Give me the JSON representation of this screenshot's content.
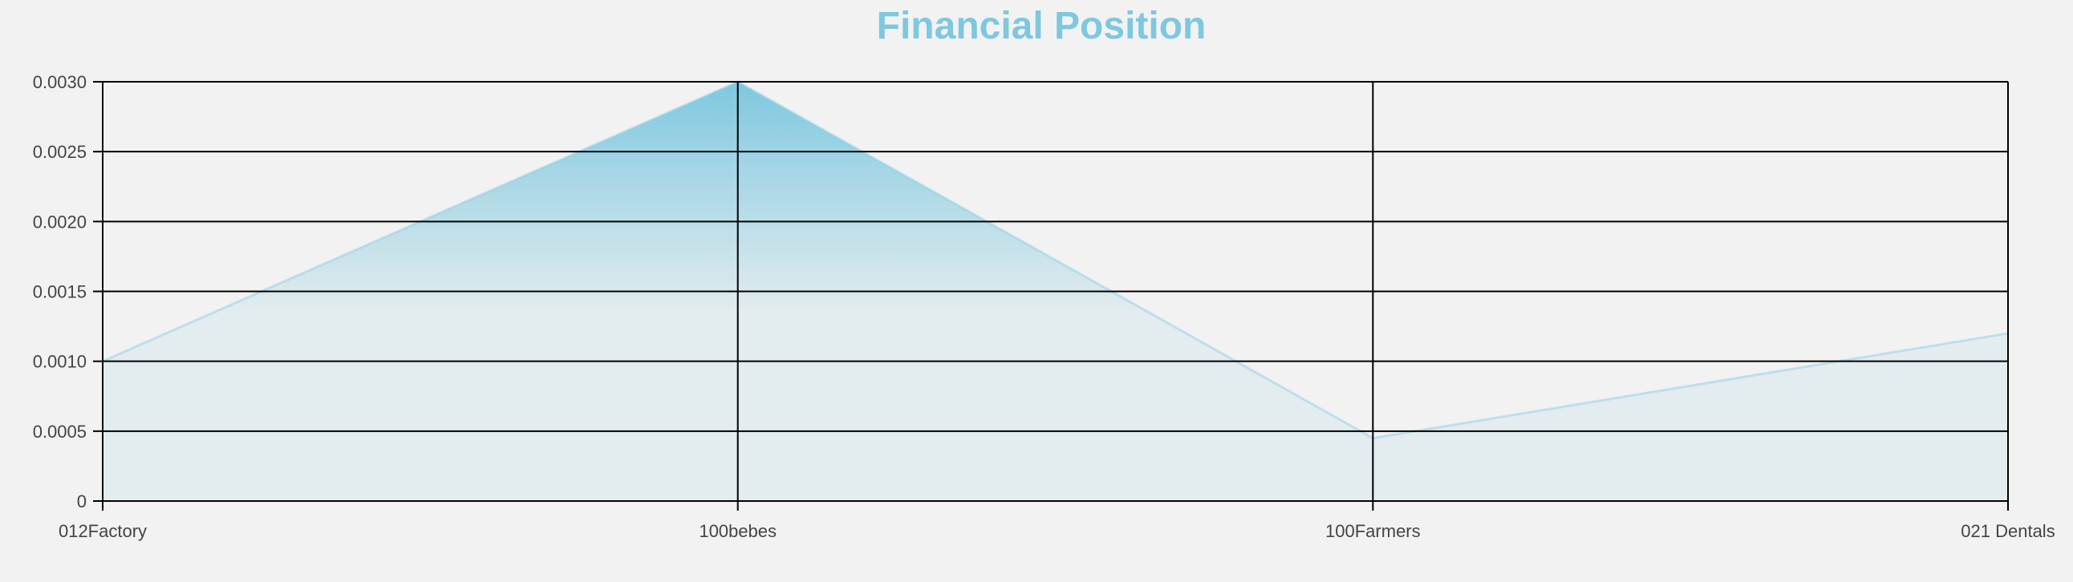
{
  "chart_data": {
    "type": "area",
    "title": "Financial Position",
    "xlabel": "",
    "ylabel": "",
    "categories": [
      "012Factory",
      "100bebes",
      "100Farmers",
      "021 Dentals"
    ],
    "series": [
      {
        "values": [
          0.001,
          0.003,
          0.00045,
          0.0012
        ]
      }
    ],
    "ylim": [
      0,
      0.003
    ],
    "yticks": [
      0,
      0.0005,
      0.001,
      0.0015,
      0.002,
      0.0025,
      0.003
    ],
    "ytick_labels": [
      "0",
      "0.0005",
      "0.0010",
      "0.0015",
      "0.0020",
      "0.0025",
      "0.0030"
    ],
    "grid": true,
    "colors": {
      "title": "#7ec8df",
      "area_top": "#7ec8df",
      "area_bottom": "#e3ecef",
      "line": "#8fd0e4",
      "grid": "#000000"
    }
  }
}
